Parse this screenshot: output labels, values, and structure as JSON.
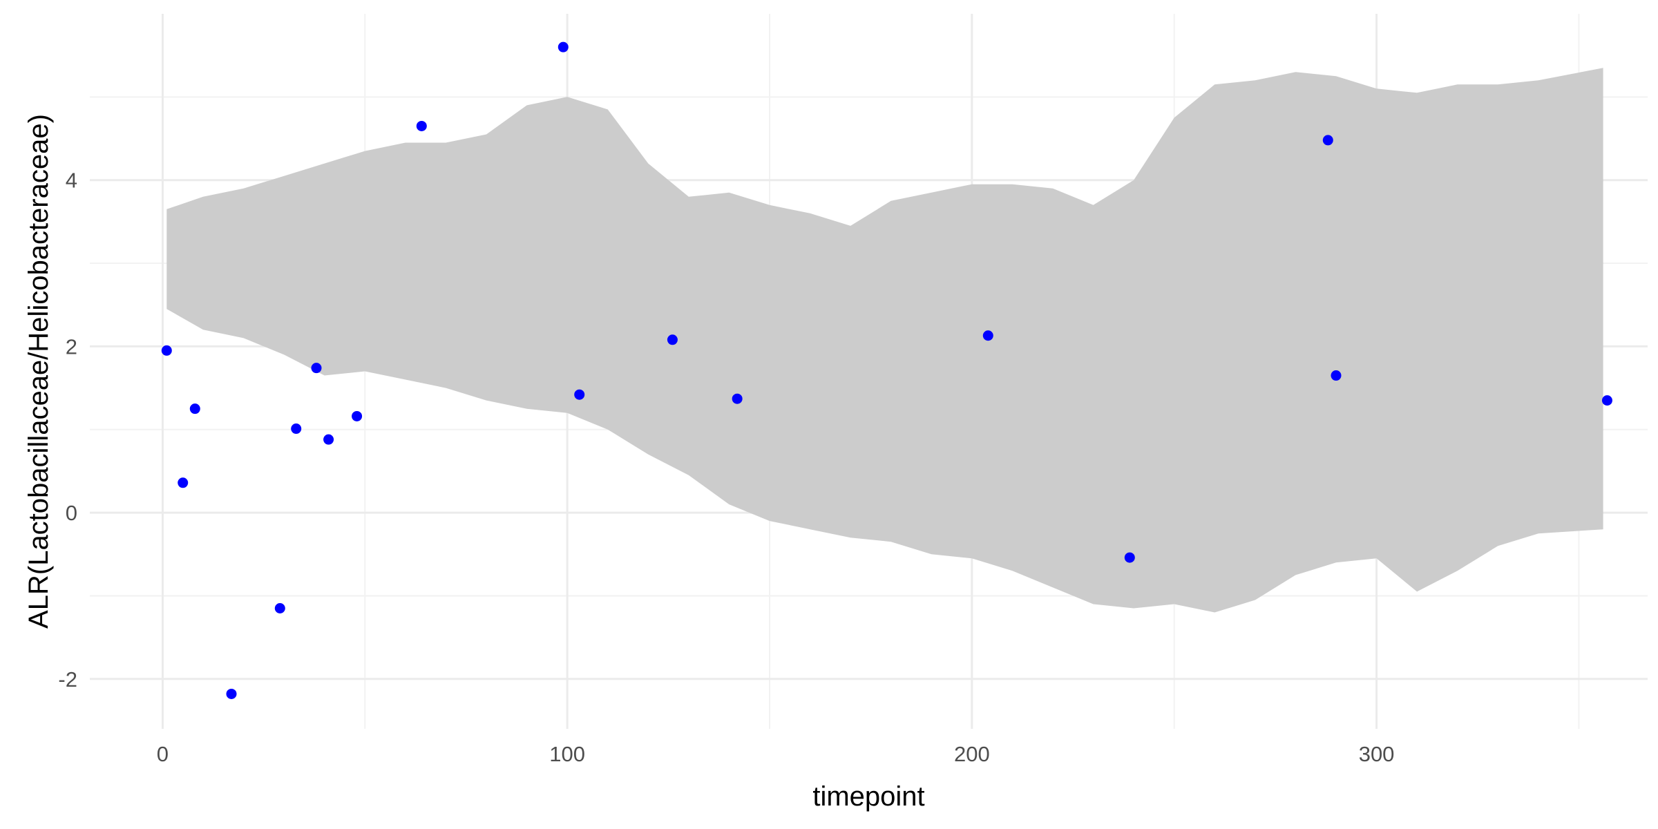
{
  "chart_data": {
    "type": "scatter",
    "title": "",
    "xlabel": "timepoint",
    "ylabel": "ALR(Lactobacillaceae/Helicobacteraceae)",
    "xlim": [
      -18,
      367
    ],
    "ylim": [
      -2.6,
      6.0
    ],
    "x_ticks": [
      0,
      100,
      200,
      300
    ],
    "x_tick_labels": [
      "0",
      "100",
      "200",
      "300"
    ],
    "y_ticks": [
      -2,
      0,
      2,
      4
    ],
    "y_tick_labels": [
      "-2",
      "0",
      "2",
      "4"
    ],
    "grid": true,
    "legend": "none",
    "band": {
      "x": [
        1,
        10,
        20,
        30,
        40,
        50,
        60,
        70,
        80,
        90,
        100,
        110,
        120,
        130,
        140,
        150,
        160,
        170,
        180,
        190,
        200,
        210,
        220,
        230,
        240,
        250,
        260,
        270,
        280,
        290,
        300,
        310,
        320,
        330,
        340,
        356
      ],
      "lower": [
        2.45,
        2.2,
        2.1,
        1.9,
        1.65,
        1.7,
        1.6,
        1.5,
        1.35,
        1.25,
        1.2,
        1.0,
        0.7,
        0.45,
        0.1,
        -0.1,
        -0.2,
        -0.3,
        -0.35,
        -0.5,
        -0.55,
        -0.7,
        -0.9,
        -1.1,
        -1.15,
        -1.1,
        -1.2,
        -1.05,
        -0.75,
        -0.6,
        -0.55,
        -0.95,
        -0.7,
        -0.4,
        -0.25,
        -0.2
      ],
      "upper": [
        3.65,
        3.8,
        3.9,
        4.05,
        4.2,
        4.35,
        4.45,
        4.45,
        4.55,
        4.9,
        5.0,
        4.85,
        4.2,
        3.8,
        3.85,
        3.7,
        3.6,
        3.45,
        3.75,
        3.85,
        3.95,
        3.95,
        3.9,
        3.7,
        4.0,
        4.75,
        5.15,
        5.2,
        5.3,
        5.25,
        5.1,
        5.05,
        5.15,
        5.15,
        5.2,
        5.35
      ]
    },
    "points": {
      "x": [
        1,
        5,
        8,
        17,
        29,
        33,
        38,
        41,
        48,
        64,
        99,
        103,
        126,
        142,
        204,
        239,
        288,
        290,
        357
      ],
      "y": [
        1.95,
        0.36,
        1.25,
        -2.18,
        -1.15,
        1.01,
        1.74,
        0.88,
        1.16,
        4.65,
        5.6,
        1.42,
        2.08,
        1.37,
        2.13,
        -0.54,
        4.48,
        1.65,
        1.35
      ]
    },
    "colors": {
      "points": "#0000ff",
      "band": "#cccccc",
      "grid_major": "#ebebeb",
      "grid_minor": "#f2f2f2"
    }
  }
}
